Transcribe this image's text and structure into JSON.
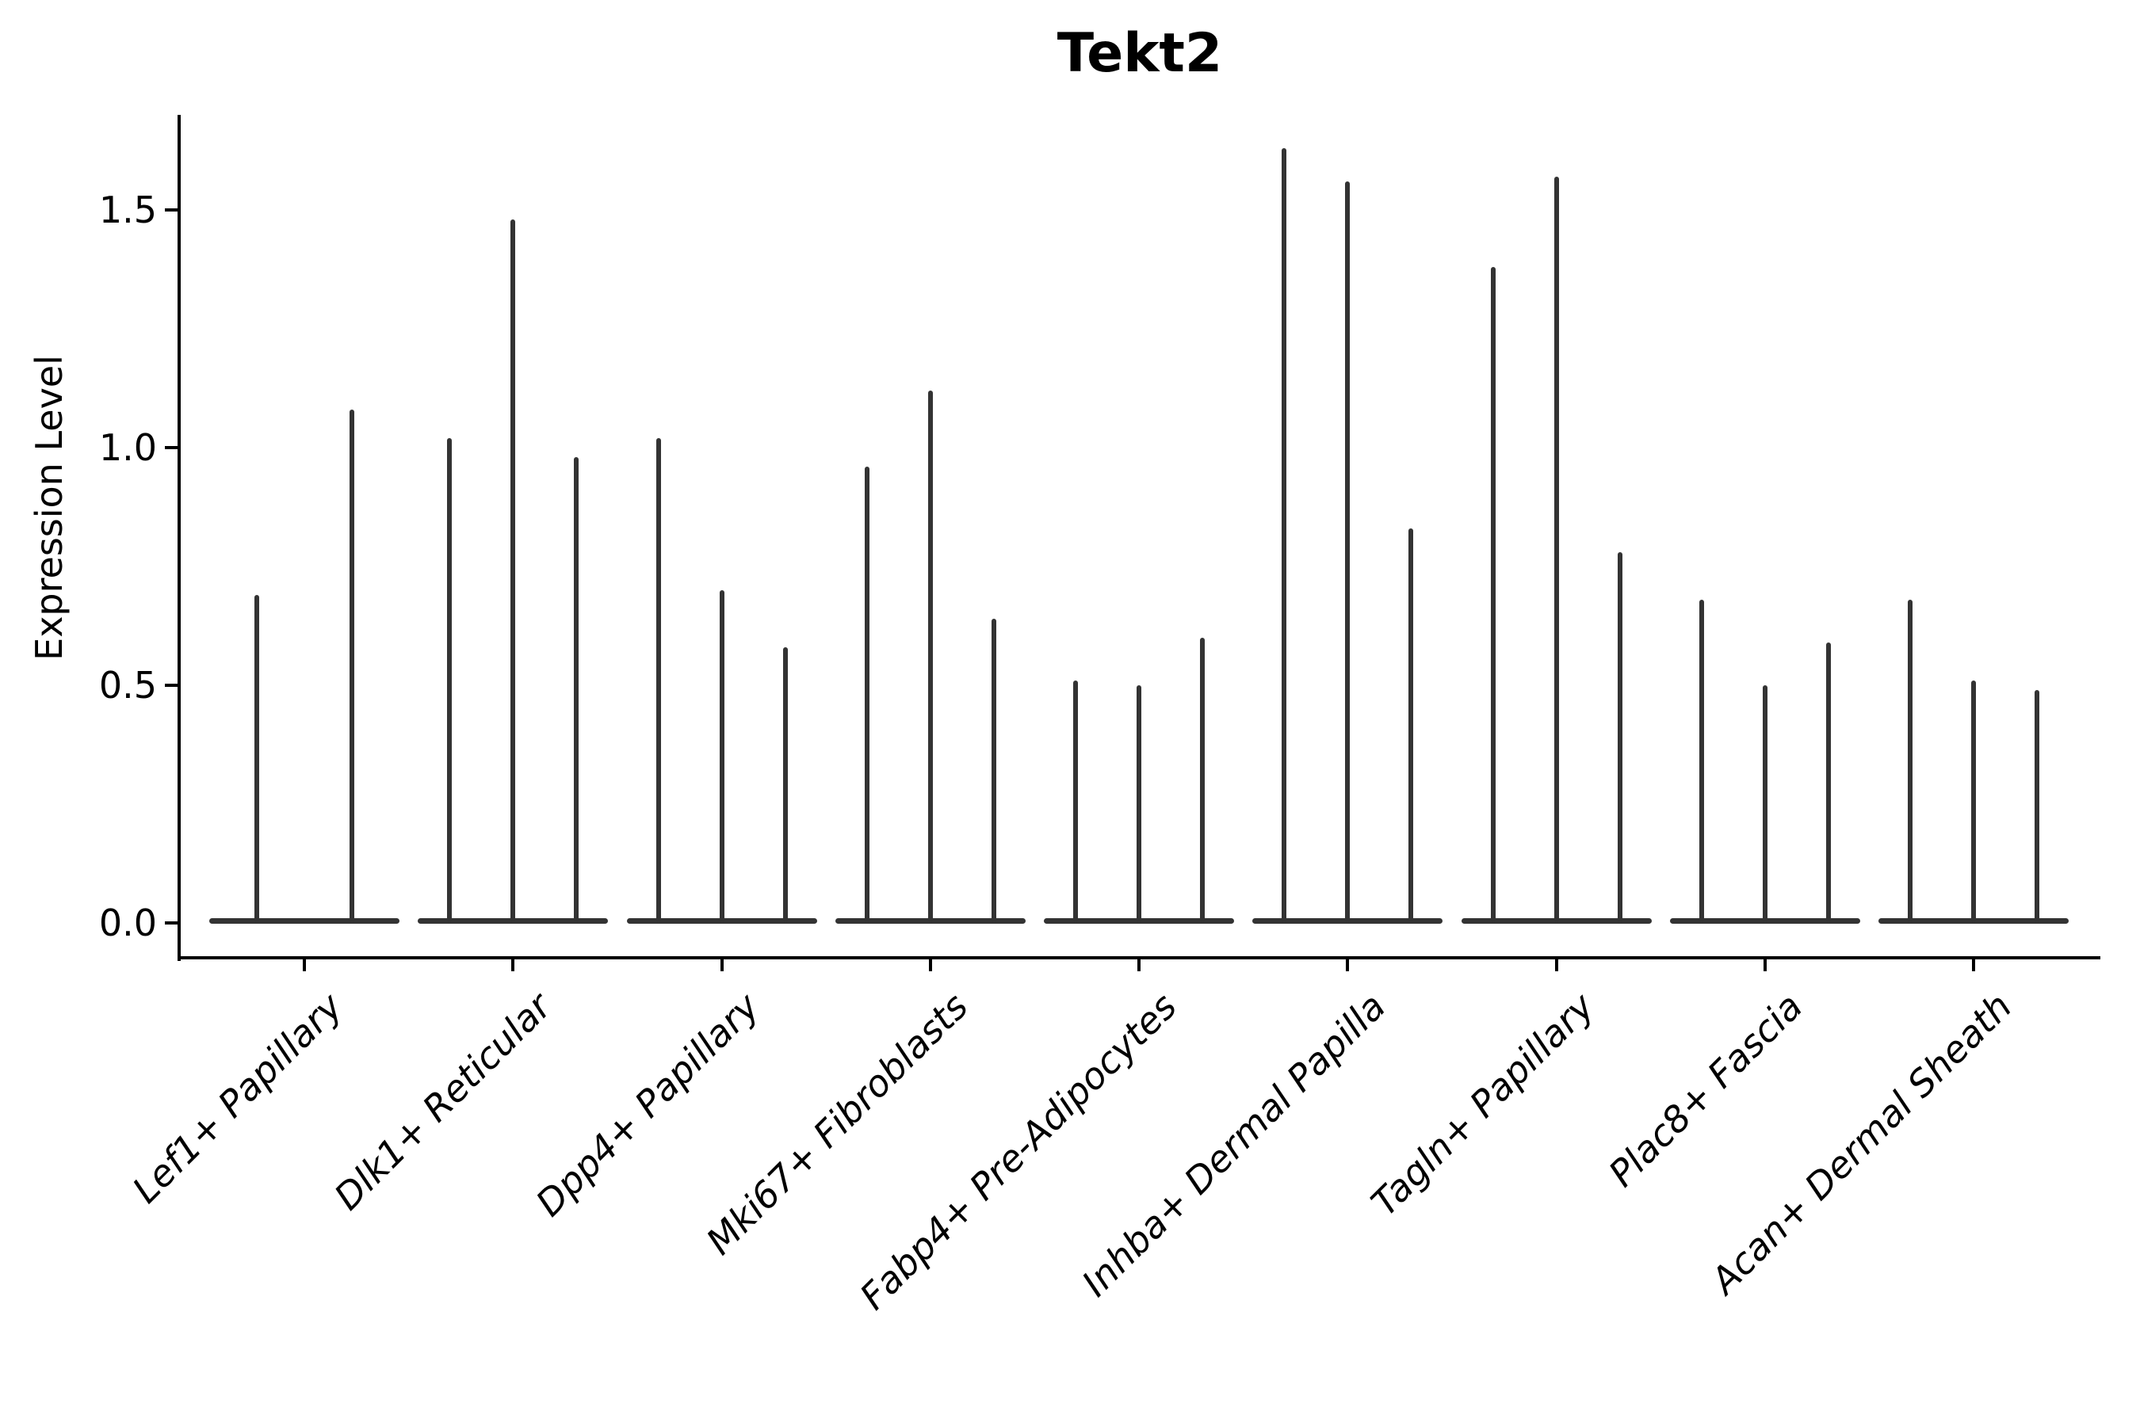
{
  "figure": {
    "title": "Tekt2",
    "y_axis_label": "Expression Level"
  },
  "chart_data": {
    "type": "violin",
    "title": "Tekt2",
    "xlabel": "",
    "ylabel": "Expression Level",
    "yticks": [
      0.0,
      0.5,
      1.0,
      1.5
    ],
    "ytick_labels": [
      "0.0",
      "0.5",
      "1.0",
      "1.5"
    ],
    "ylim": [
      -0.07,
      1.77
    ],
    "grid": false,
    "legend": null,
    "categories": [
      "Lef1+ Papillary",
      "Dlk1+ Reticular",
      "Dpp4+ Papillary",
      "Mki67+ Fibroblasts",
      "Fabp4+ Pre-Adipocytes",
      "Inhba+ Dermal Papilla",
      "Tagln+ Papillary",
      "Plac8+ Fascia",
      "Acan+ Dermal Sheath"
    ],
    "violin_spike_maxima": [
      [
        0.69,
        1.08
      ],
      [
        1.02,
        1.48,
        0.98
      ],
      [
        1.02,
        0.7,
        0.58
      ],
      [
        0.96,
        1.12,
        0.64
      ],
      [
        0.51,
        0.5,
        0.6
      ],
      [
        1.63,
        1.56,
        0.83
      ],
      [
        1.38,
        1.57,
        0.78
      ],
      [
        0.68,
        0.5,
        0.59
      ],
      [
        0.68,
        0.51,
        0.49
      ]
    ],
    "violin_body_value": 0.0,
    "line_color": "#333333",
    "axis_color": "#000000",
    "description": "Needle-thin violins: bulk of cells at expression 0 (flat baseline), thin spike up to the per-violin maximum expression."
  }
}
